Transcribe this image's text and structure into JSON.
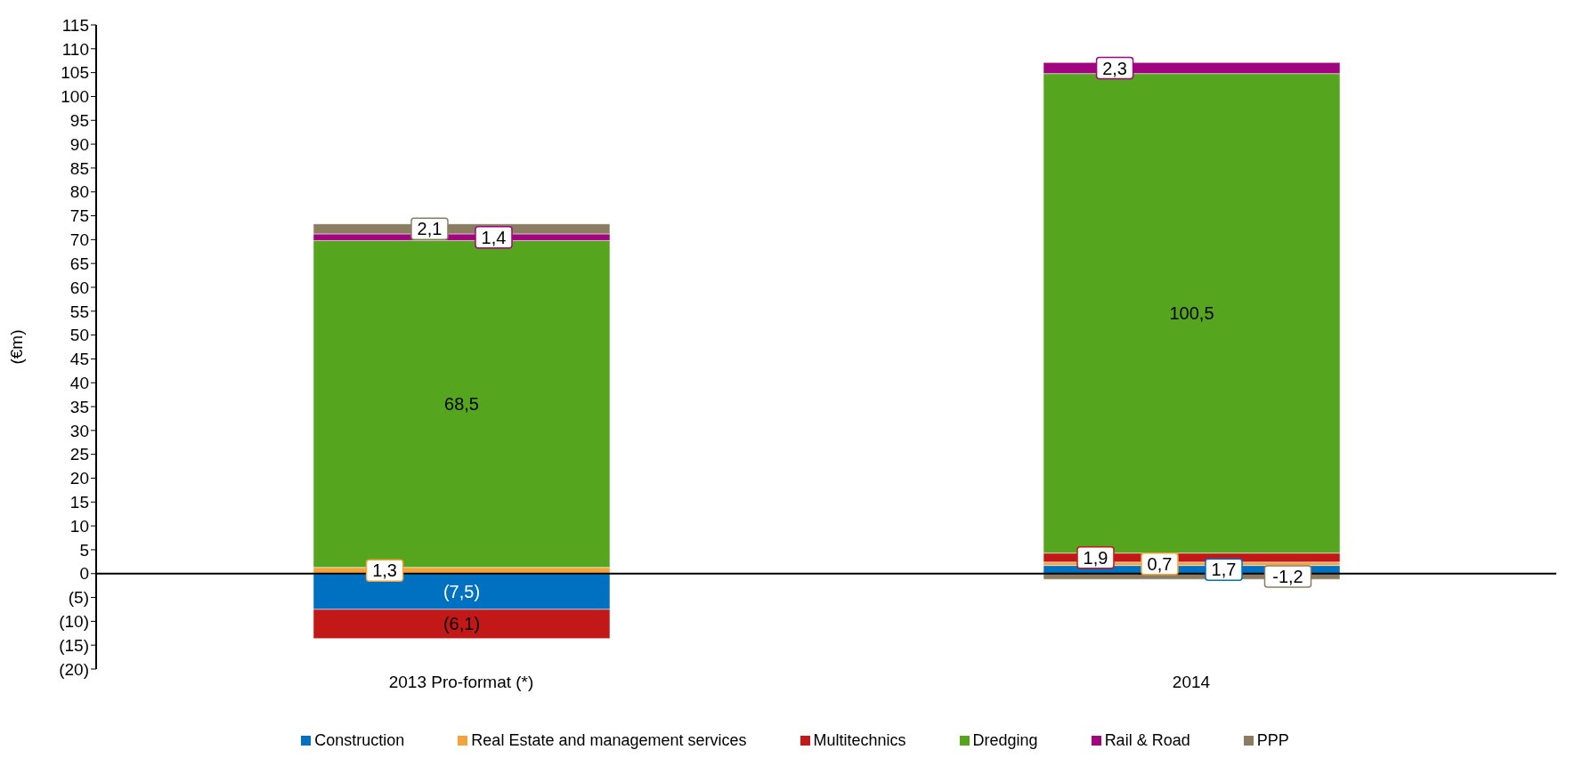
{
  "chart_data": {
    "type": "bar",
    "stacked": true,
    "ylabel": "(€m)",
    "categories": [
      "2013 Pro-format (*)",
      "2014"
    ],
    "ylim": [
      -20,
      115
    ],
    "yticks": [
      {
        "value": -20,
        "label": "(20)"
      },
      {
        "value": -15,
        "label": "(15)"
      },
      {
        "value": -10,
        "label": "(10)"
      },
      {
        "value": -5,
        "label": "(5)"
      },
      0,
      5,
      10,
      15,
      20,
      25,
      30,
      35,
      40,
      45,
      50,
      55,
      60,
      65,
      70,
      75,
      80,
      85,
      90,
      95,
      100,
      105,
      110,
      115
    ],
    "grid": false,
    "legend": "bottom",
    "ref_lines": [
      {
        "axis": "y",
        "value": 0,
        "color": "#000000"
      }
    ],
    "series": [
      {
        "name": "Construction",
        "color": "#0070c0",
        "values": [
          -7.5,
          1.7
        ],
        "value_labels": [
          "(7,5)",
          "1,7"
        ]
      },
      {
        "name": "Real Estate and management services",
        "color": "#f4a23a",
        "values": [
          1.3,
          0.7
        ],
        "value_labels": [
          "1,3",
          "0,7"
        ]
      },
      {
        "name": "Multitechnics",
        "color": "#c21817",
        "values": [
          -6.1,
          1.9
        ],
        "value_labels": [
          "(6,1)",
          "1,9"
        ]
      },
      {
        "name": "Dredging",
        "color": "#55a51f",
        "values": [
          68.5,
          100.5
        ],
        "value_labels": [
          "68,5",
          "100,5"
        ]
      },
      {
        "name": "Rail & Road",
        "color": "#a0057f",
        "values": [
          1.4,
          2.3
        ],
        "value_labels": [
          "1,4",
          "2,3"
        ]
      },
      {
        "name": "PPP",
        "color": "#8b7d62",
        "values": [
          2.1,
          -1.2
        ],
        "value_labels": [
          "2,1",
          "-1,2"
        ]
      }
    ]
  }
}
